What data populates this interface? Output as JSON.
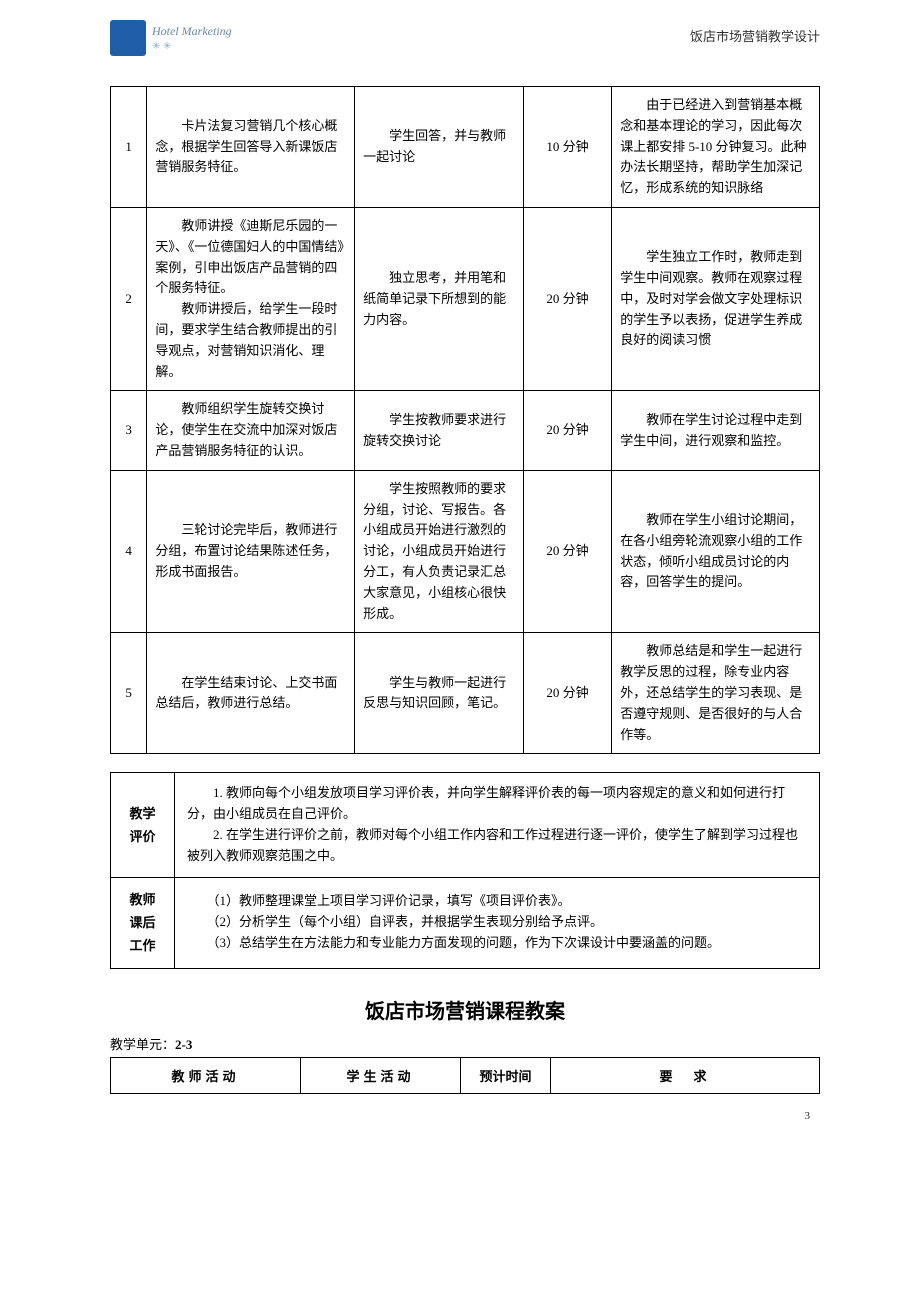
{
  "header": {
    "logo_script": "Hotel  Marketing",
    "doc_title": "饭店市场营销教学设计"
  },
  "rows": [
    {
      "num": "1",
      "teacher": "　　卡片法复习营销几个核心概念，根据学生回答导入新课饭店营销服务特征。",
      "student": "　　学生回答，并与教师一起讨论",
      "time": "10 分钟",
      "req": "　　由于已经进入到营销基本概念和基本理论的学习，因此每次课上都安排 5-10 分钟复习。此种办法长期坚持，帮助学生加深记忆，形成系统的知识脉络"
    },
    {
      "num": "2",
      "teacher": "　　教师讲授《迪斯尼乐园的一天》、《一位德国妇人的中国情结》案例，引申出饭店产品营销的四个服务特征。\n　　教师讲授后，给学生一段时间，要求学生结合教师提出的引导观点，对营销知识消化、理解。",
      "student": "　　独立思考，并用笔和纸简单记录下所想到的能力内容。",
      "time": "20 分钟",
      "req": "　　学生独立工作时，教师走到学生中间观察。教师在观察过程中，及时对学会做文字处理标识的学生予以表扬，促进学生养成良好的阅读习惯"
    },
    {
      "num": "3",
      "teacher": "　　教师组织学生旋转交换讨论，使学生在交流中加深对饭店产品营销服务特征的认识。",
      "student": "　　学生按教师要求进行旋转交换讨论",
      "time": "20 分钟",
      "req": "　　教师在学生讨论过程中走到学生中间，进行观察和监控。"
    },
    {
      "num": "4",
      "teacher": "　　三轮讨论完毕后，教师进行分组，布置讨论结果陈述任务，形成书面报告。",
      "student": "　　学生按照教师的要求分组，讨论、写报告。各小组成员开始进行激烈的讨论，小组成员开始进行分工，有人负责记录汇总大家意见，小组核心很快形成。",
      "time": "20 分钟",
      "req": "　　教师在学生小组讨论期间，在各小组旁轮流观察小组的工作状态，倾听小组成员讨论的内容，回答学生的提问。"
    },
    {
      "num": "5",
      "teacher": "　　在学生结束讨论、上交书面总结后，教师进行总结。",
      "student": "　　学生与教师一起进行反思与知识回顾，笔记。",
      "time": "20 分钟",
      "req": "　　教师总结是和学生一起进行教学反思的过程，除专业内容外，还总结学生的学习表现、是否遵守规则、是否很好的与人合作等。"
    }
  ],
  "eval": [
    {
      "label": "教学\n评价",
      "content": "　　1. 教师向每个小组发放项目学习评价表，并向学生解释评价表的每一项内容规定的意义和如何进行打分，由小组成员在自己评价。\n　　2. 在学生进行评价之前，教师对每个小组工作内容和工作过程进行逐一评价，使学生了解到学习过程也被列入教师观察范围之中。"
    },
    {
      "label": "教师\n课后\n工作",
      "content": "　　（1）教师整理课堂上项目学习评价记录，填写《项目评价表》。\n　　（2）分析学生（每个小组）自评表，并根据学生表现分别给予点评。\n　　（3）总结学生在方法能力和专业能力方面发现的问题，作为下次课设计中要涵盖的问题。"
    }
  ],
  "section_title": "饭店市场营销课程教案",
  "unit_prefix": "教学单元：",
  "unit_value": "2-3",
  "head2": {
    "c1": "教师活动",
    "c2": "学生活动",
    "c3": "预计时间",
    "c4": "要　求"
  },
  "page_number": "3"
}
